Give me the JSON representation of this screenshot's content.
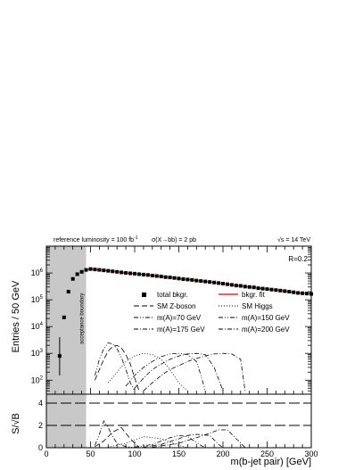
{
  "chart_data": [
    {
      "type": "scatter",
      "panel": "main",
      "title": "",
      "xlabel": "",
      "ylabel": "Entries / 50 GeV",
      "xlim": [
        0,
        300
      ],
      "ylim": [
        30,
        10000000
      ],
      "yscale": "log",
      "ytick_labels": [
        "10^2",
        "10^3",
        "10^4",
        "10^5",
        "10^6"
      ],
      "header": {
        "lumi": "reference luminosity = 100 fb",
        "lumi_sup": "-1",
        "xsec": "σ(X→bb) = 2 pb",
        "energy": "√s = 14 TeV"
      },
      "radius_label": "R=0.2",
      "acceptance_boundary": {
        "x": 45,
        "label": "acceptance boundary"
      },
      "legend_position": "center-right",
      "legend": [
        {
          "name": "total bkgr.",
          "style": "square-marker"
        },
        {
          "name": "bkgr. fit",
          "style": "solid-red"
        },
        {
          "name": "SM Z-boson",
          "style": "dashed"
        },
        {
          "name": "SM Higgs",
          "style": "dotted"
        },
        {
          "name": "m(A)=70 GeV",
          "style": "dashdotdot"
        },
        {
          "name": "m(A)=150 GeV",
          "style": "dashdotdot"
        },
        {
          "name": "m(A)=175 GeV",
          "style": "dashdot"
        },
        {
          "name": "m(A)=200 GeV",
          "style": "dashdot"
        }
      ],
      "colors": {
        "fit": "#e03030",
        "acceptance_band": "#c8c8c8",
        "markers": "#000000"
      },
      "total_bkgr_below_acceptance": {
        "x": [
          15,
          20,
          25,
          30,
          35,
          40
        ],
        "y": [
          800,
          22000,
          200000,
          600000,
          900000,
          1100000
        ],
        "yerr_low_first": 150,
        "yerr_high_first": 4000
      },
      "total_bkgr": {
        "x": [
          45,
          50,
          55,
          60,
          65,
          70,
          75,
          80,
          85,
          90,
          95,
          100,
          105,
          110,
          115,
          120,
          125,
          130,
          135,
          140,
          145,
          150,
          155,
          160,
          165,
          170,
          175,
          180,
          185,
          190,
          195,
          200,
          205,
          210,
          215,
          220,
          225,
          230,
          235,
          240,
          245,
          250,
          255,
          260,
          265,
          270,
          275,
          280,
          285,
          290,
          295,
          300
        ],
        "y": [
          1300000,
          1400000,
          1350000,
          1300000,
          1250000,
          1200000,
          1150000,
          1100000,
          1050000,
          1000000,
          970000,
          940000,
          900000,
          870000,
          840000,
          800000,
          770000,
          740000,
          700000,
          680000,
          650000,
          620000,
          590000,
          570000,
          550000,
          520000,
          500000,
          480000,
          460000,
          440000,
          420000,
          400000,
          380000,
          360000,
          340000,
          330000,
          310000,
          300000,
          290000,
          270000,
          260000,
          250000,
          240000,
          230000,
          220000,
          210000,
          200000,
          190000,
          180000,
          175000,
          170000,
          165000
        ]
      },
      "series": [
        {
          "name": "SM Z-boson",
          "style": "dashed",
          "x": [
            55,
            60,
            65,
            70,
            75,
            80,
            85,
            90,
            95,
            100,
            105
          ],
          "y": [
            100,
            250,
            600,
            1200,
            1800,
            2000,
            1600,
            900,
            400,
            120,
            40
          ]
        },
        {
          "name": "SM Higgs",
          "style": "dotted",
          "x": [
            70,
            80,
            90,
            100,
            110,
            120,
            130,
            140,
            150,
            160
          ],
          "y": [
            80,
            200,
            500,
            800,
            1000,
            900,
            600,
            250,
            80,
            40
          ]
        },
        {
          "name": "m(A)=70 GeV",
          "style": "dashdotdot",
          "x": [
            55,
            60,
            65,
            70,
            75,
            80,
            85,
            90,
            95,
            100
          ],
          "y": [
            150,
            600,
            1500,
            2500,
            2200,
            1500,
            700,
            250,
            80,
            40
          ]
        },
        {
          "name": "m(A)=150 GeV",
          "style": "dashdotdot",
          "x": [
            90,
            100,
            110,
            120,
            130,
            140,
            150,
            160,
            170,
            175,
            180
          ],
          "y": [
            60,
            150,
            300,
            500,
            750,
            950,
            1000,
            900,
            500,
            150,
            40
          ]
        },
        {
          "name": "m(A)=175 GeV",
          "style": "dashdot",
          "x": [
            100,
            110,
            120,
            130,
            140,
            150,
            160,
            170,
            180,
            190,
            200
          ],
          "y": [
            50,
            120,
            250,
            400,
            600,
            800,
            950,
            1000,
            900,
            300,
            40
          ]
        },
        {
          "name": "m(A)=200 GeV",
          "style": "dashdot",
          "x": [
            110,
            120,
            130,
            140,
            150,
            160,
            170,
            180,
            190,
            200,
            210,
            220,
            225
          ],
          "y": [
            40,
            80,
            150,
            250,
            350,
            500,
            650,
            800,
            950,
            1000,
            950,
            600,
            40
          ]
        }
      ]
    },
    {
      "type": "line",
      "panel": "ratio",
      "xlabel": "m(b-jet pair) [GeV]",
      "ylabel": "S/√B",
      "xlim": [
        0,
        300
      ],
      "ylim": [
        0,
        4.8
      ],
      "x_ticks": [
        0,
        50,
        100,
        150,
        200,
        250,
        300
      ],
      "y_ticks": [
        0,
        2,
        4
      ],
      "reference_lines": [
        2,
        4
      ],
      "series": [
        {
          "name": "SM Z-boson",
          "style": "dashed",
          "x": [
            55,
            65,
            75,
            85,
            95,
            105
          ],
          "y": [
            0.1,
            0.6,
            1.4,
            1.8,
            0.8,
            0.05
          ]
        },
        {
          "name": "SM Higgs",
          "style": "dotted",
          "x": [
            70,
            90,
            110,
            130,
            150,
            160
          ],
          "y": [
            0.05,
            0.4,
            1.0,
            0.8,
            0.2,
            0.02
          ]
        },
        {
          "name": "m(A)=70 GeV",
          "style": "dashdotdot",
          "x": [
            55,
            60,
            65,
            70,
            75,
            80,
            90,
            100
          ],
          "y": [
            0.2,
            1.2,
            2.4,
            1.8,
            1.0,
            0.4,
            0.1,
            0.02
          ]
        },
        {
          "name": "m(A)=150 GeV",
          "style": "dashdotdot",
          "x": [
            100,
            120,
            140,
            150,
            160,
            175,
            180
          ],
          "y": [
            0.05,
            0.3,
            0.9,
            1.1,
            1.0,
            0.2,
            0.02
          ]
        },
        {
          "name": "m(A)=175 GeV",
          "style": "dashdot",
          "x": [
            110,
            130,
            150,
            160,
            170,
            185,
            195,
            200
          ],
          "y": [
            0.05,
            0.3,
            0.8,
            1.1,
            1.2,
            1.1,
            0.3,
            0.02
          ]
        },
        {
          "name": "m(A)=200 GeV",
          "style": "dashdot",
          "x": [
            120,
            150,
            170,
            185,
            195,
            205,
            215,
            225
          ],
          "y": [
            0.05,
            0.4,
            0.9,
            1.3,
            1.6,
            1.6,
            0.8,
            0.02
          ]
        }
      ]
    }
  ]
}
